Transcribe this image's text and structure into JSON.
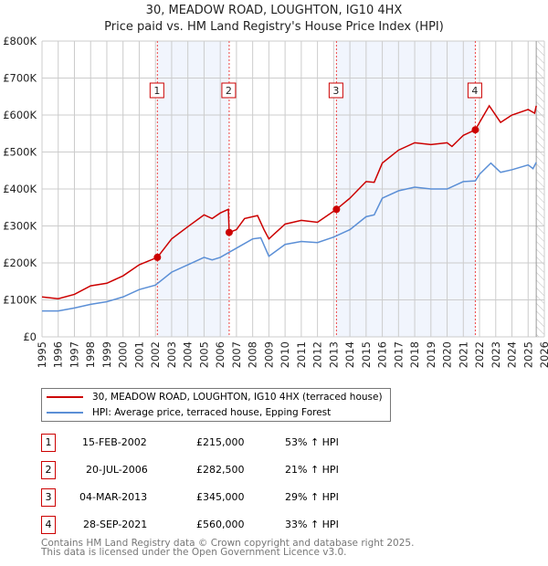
{
  "chart_data": {
    "type": "line",
    "title": "30, MEADOW ROAD, LOUGHTON, IG10 4HX",
    "subtitle": "Price paid vs. HM Land Registry's House Price Index (HPI)",
    "ylim": [
      0,
      800000
    ],
    "xlim": [
      1995,
      2026
    ],
    "y_ticks": [
      "£0",
      "£100K",
      "£200K",
      "£300K",
      "£400K",
      "£500K",
      "£600K",
      "£700K",
      "£800K"
    ],
    "x_ticks": [
      "1995",
      "1996",
      "1997",
      "1998",
      "1999",
      "2000",
      "2001",
      "2002",
      "2003",
      "2004",
      "2005",
      "2006",
      "2007",
      "2008",
      "2009",
      "2010",
      "2011",
      "2012",
      "2013",
      "2014",
      "2015",
      "2016",
      "2017",
      "2018",
      "2019",
      "2020",
      "2021",
      "2022",
      "2023",
      "2024",
      "2025",
      "2026"
    ],
    "series": [
      {
        "name": "30, MEADOW ROAD, LOUGHTON, IG10 4HX (terraced house)",
        "color": "#cc0000",
        "x": [
          1995,
          1996,
          1997,
          1998,
          1999,
          2000,
          2001,
          2002.12,
          2003,
          2004,
          2005,
          2005.5,
          2006,
          2006.5,
          2006.55,
          2007,
          2007.5,
          2008.3,
          2008.7,
          2009,
          2010,
          2011,
          2012,
          2013.17,
          2014,
          2015,
          2015.5,
          2016,
          2017,
          2018,
          2019,
          2020,
          2020.3,
          2021,
          2021.74,
          2022,
          2022.6,
          2023.3,
          2024,
          2025,
          2025.4,
          2025.5
        ],
        "y": [
          108000,
          103000,
          115000,
          138000,
          145000,
          165000,
          195000,
          215000,
          265000,
          298000,
          330000,
          320000,
          335000,
          345000,
          282500,
          290000,
          320000,
          328000,
          290000,
          265000,
          305000,
          315000,
          310000,
          345000,
          375000,
          420000,
          418000,
          470000,
          505000,
          525000,
          520000,
          525000,
          515000,
          545000,
          560000,
          580000,
          625000,
          580000,
          600000,
          615000,
          605000,
          625000
        ]
      },
      {
        "name": "HPI: Average price, terraced house, Epping Forest",
        "color": "#5b8fd6",
        "x": [
          1995,
          1996,
          1997,
          1998,
          1999,
          2000,
          2001,
          2002,
          2003,
          2004,
          2005,
          2005.5,
          2006,
          2007,
          2008,
          2008.5,
          2009,
          2010,
          2011,
          2012,
          2013,
          2014,
          2015,
          2015.5,
          2016,
          2017,
          2018,
          2019,
          2020,
          2021,
          2021.74,
          2022,
          2022.7,
          2023.3,
          2024,
          2025,
          2025.3,
          2025.5
        ],
        "y": [
          70000,
          70000,
          78000,
          88000,
          95000,
          108000,
          128000,
          140000,
          175000,
          195000,
          215000,
          208000,
          215000,
          240000,
          265000,
          268000,
          218000,
          250000,
          258000,
          255000,
          270000,
          290000,
          325000,
          330000,
          375000,
          395000,
          405000,
          400000,
          400000,
          420000,
          422000,
          440000,
          470000,
          445000,
          452000,
          465000,
          455000,
          472000
        ]
      }
    ],
    "sales": [
      {
        "label": "1",
        "x": 2002.12,
        "y": 215000,
        "date": "15-FEB-2002",
        "price": "£215,000",
        "hpi": "53% ↑ HPI"
      },
      {
        "label": "2",
        "x": 2006.55,
        "y": 282500,
        "date": "20-JUL-2006",
        "price": "£282,500",
        "hpi": "21% ↑ HPI"
      },
      {
        "label": "3",
        "x": 2013.17,
        "y": 345000,
        "date": "04-MAR-2013",
        "price": "£345,000",
        "hpi": "29% ↑ HPI"
      },
      {
        "label": "4",
        "x": 2021.74,
        "y": 560000,
        "date": "28-SEP-2021",
        "price": "£560,000",
        "hpi": "33% ↑ HPI"
      }
    ],
    "shaded_ranges": [
      [
        2002.12,
        2006.55
      ],
      [
        2013.17,
        2021.74
      ]
    ],
    "forecast_from": 2025.5,
    "legend_placement": "below"
  },
  "footer": {
    "line1": "Contains HM Land Registry data © Crown copyright and database right 2025.",
    "line2": "This data is licensed under the Open Government Licence v3.0."
  }
}
